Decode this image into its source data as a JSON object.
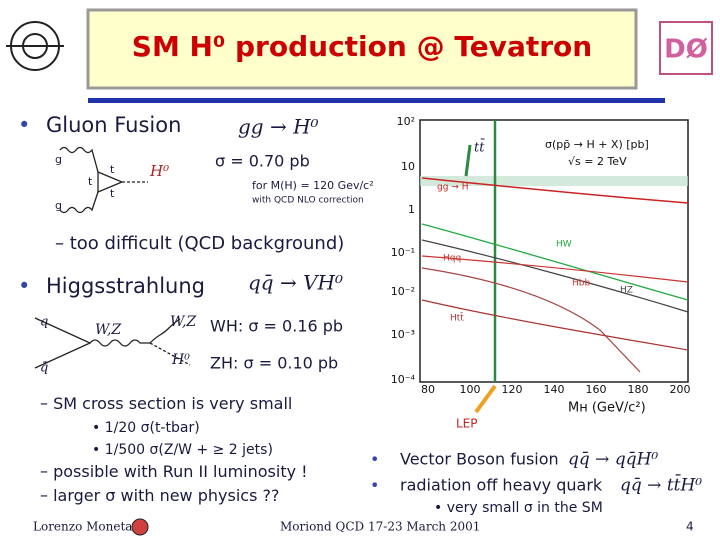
{
  "header": {
    "title": "SM H⁰ production @ Tevatron"
  },
  "gluon_fusion": {
    "heading": "Gluon Fusion",
    "formula": "gg → H⁰",
    "cross_section": "σ = 0.70 pb",
    "mass_note": "for M(H) = 120 Gev/c²",
    "correction_note": "with QCD NLO correction",
    "remark": "too difficult (QCD background)",
    "diagram_labels": [
      "g",
      "g",
      "t",
      "t",
      "t",
      "H⁰"
    ]
  },
  "higgsstrahlung": {
    "heading": "Higgsstrahlung",
    "formula": "qq̄ → VH⁰",
    "wh": "WH: σ = 0.16 pb",
    "zh": "ZH: σ = 0.10 pb",
    "diagram_labels": [
      "q",
      "q̄",
      "W,Z",
      "W,Z",
      "H⁰"
    ]
  },
  "notes": [
    "SM cross section is very small",
    "1/20 σ(t-tbar)",
    "1/500 σ(Z/W + ≥ 2 jets)",
    "possible with Run II luminosity !",
    "larger σ with new physics ??"
  ],
  "other_processes": [
    {
      "text": "Vector Boson fusion",
      "formula": "qq̄ → qq̄H⁰"
    },
    {
      "text": "radiation off heavy quark",
      "formula": "qq̄ → tt̄H⁰"
    }
  ],
  "other_note": "very small σ in the SM",
  "plot": {
    "title": "σ(pp̄ → H + X) [pb]",
    "subtitle": "√s = 2 TeV",
    "y_labels": [
      "10²",
      "10",
      "1",
      "10⁻¹",
      "10⁻²",
      "10⁻³",
      "10⁻⁴"
    ],
    "x_labels": [
      "80",
      "100",
      "120",
      "140",
      "160",
      "180",
      "200"
    ],
    "x_title": "Mʜ (GeV/c²)",
    "curve_labels": [
      "tt̄",
      "gg → H",
      "HW",
      "Hqq",
      "Hbb",
      "HZ",
      "Htt̄"
    ],
    "lep": "LEP"
  },
  "footer": {
    "author": "Lorenzo Moneta",
    "event": "Moriond QCD 17-23 March 2001",
    "page": "4"
  }
}
